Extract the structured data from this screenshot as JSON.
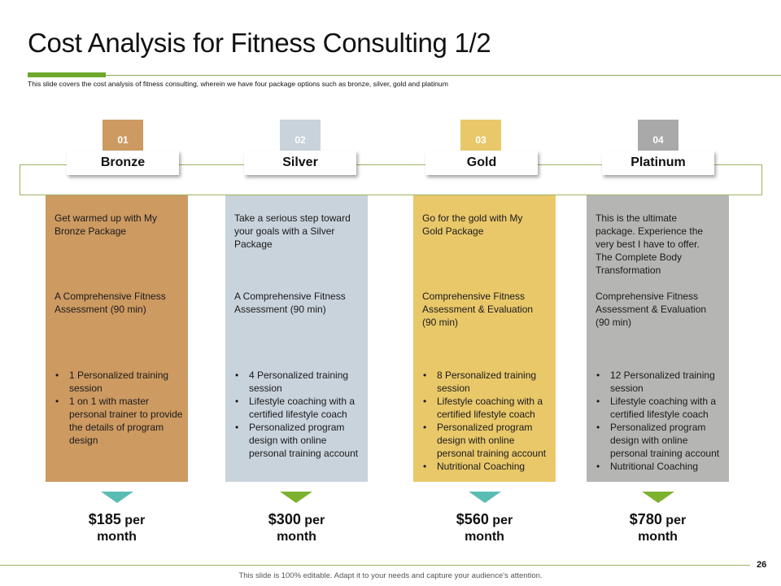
{
  "slide": {
    "title": "Cost Analysis for Fitness Consulting 1/2",
    "subtitle": "This slide covers the cost analysis of fitness consulting, wherein we have four package options such as bronze, silver, gold and platinum",
    "page_number": "26",
    "footer": "This slide is 100% editable. Adapt it to your needs and capture your audience's attention."
  },
  "packages": [
    {
      "number": "01",
      "name": "Bronze",
      "intro": "Get warmed up with My Bronze Package",
      "assessment": "A Comprehensive Fitness Assessment (90 min)",
      "features": [
        "1 Personalized training session",
        "1 on 1 with master personal trainer to provide the details of program design"
      ],
      "price_amount": "$185",
      "price_per": "per",
      "price_period": "month",
      "number_color": "#cd9a62",
      "panel_color": "#cd9a62",
      "arrow_color": "#5bbcb3"
    },
    {
      "number": "02",
      "name": "Silver",
      "intro": "Take a serious step toward your goals with a Silver Package",
      "assessment": "A Comprehensive Fitness Assessment (90 min)",
      "features": [
        "4 Personalized training session",
        "Lifestyle coaching with a certified lifestyle coach",
        "Personalized program design with online personal training account"
      ],
      "price_amount": "$300",
      "price_per": "per",
      "price_period": "month",
      "number_color": "#c9d3dc",
      "panel_color": "#c9d3dc",
      "arrow_color": "#7db22e"
    },
    {
      "number": "03",
      "name": "Gold",
      "intro": "Go for the gold with My Gold Package",
      "assessment": "Comprehensive Fitness Assessment & Evaluation (90 min)",
      "features": [
        "8 Personalized training session",
        "Lifestyle coaching with a certified lifestyle coach",
        "Personalized program design with online personal training account",
        "Nutritional Coaching"
      ],
      "price_amount": "$560",
      "price_per": "per",
      "price_period": "month",
      "number_color": "#e9c86a",
      "panel_color": "#e9c86a",
      "arrow_color": "#5bbcb3"
    },
    {
      "number": "04",
      "name": "Platinum",
      "intro": "This is the ultimate package. Experience the very best I have to offer. The Complete Body Transformation",
      "assessment": "Comprehensive Fitness Assessment & Evaluation (90 min)",
      "features": [
        "12 Personalized training session",
        "Lifestyle coaching with a certified lifestyle coach",
        "Personalized program design with online personal training account",
        "Nutritional Coaching"
      ],
      "price_amount": "$780",
      "price_per": "per",
      "price_period": "month",
      "number_color": "#a9a9a9",
      "panel_color": "#b5b5b3",
      "arrow_color": "#7db22e"
    }
  ]
}
